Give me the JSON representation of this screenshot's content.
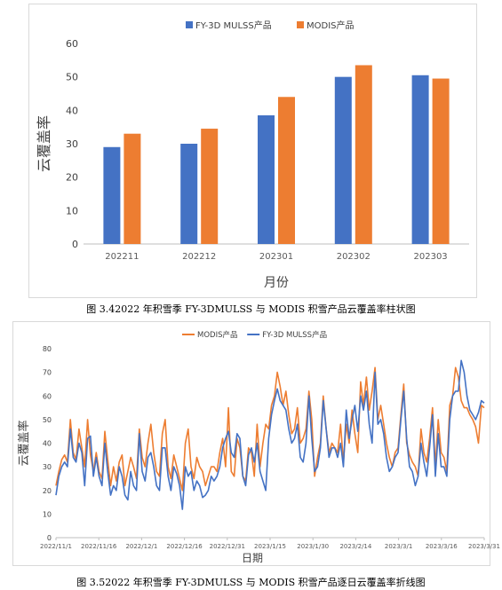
{
  "chart_data": [
    {
      "type": "bar",
      "categories": [
        "202211",
        "202212",
        "202301",
        "202302",
        "202303"
      ],
      "series": [
        {
          "name": "FY-3D MULSS产品",
          "values": [
            29,
            30,
            38.5,
            50,
            50.5
          ],
          "color": "#4472C4"
        },
        {
          "name": "MODIS产品",
          "values": [
            33,
            34.5,
            44,
            53.5,
            49.5
          ],
          "color": "#ED7D31"
        }
      ],
      "xlabel": "月份",
      "ylabel": "云覆盖率",
      "ylim": [
        0,
        60
      ],
      "yticks": [
        0,
        10,
        20,
        30,
        40,
        50,
        60
      ],
      "grid": false,
      "legend": "top-center"
    },
    {
      "type": "line",
      "xticks": [
        "2022/11/1",
        "2022/11/16",
        "2022/12/1",
        "2022/12/16",
        "2022/12/31",
        "2023/1/15",
        "2023/1/30",
        "2023/2/14",
        "2023/3/1",
        "2023/3/16",
        "2023/3/31"
      ],
      "x_start": "2022/11/1",
      "x_end": "2023/3/31",
      "series": [
        {
          "name": "MODIS产品",
          "color": "#ED7D31",
          "values": [
            22,
            28,
            33,
            35,
            32,
            50,
            36,
            33,
            46,
            38,
            30,
            50,
            35,
            28,
            36,
            28,
            25,
            45,
            33,
            22,
            30,
            24,
            32,
            35,
            22,
            28,
            34,
            30,
            25,
            46,
            34,
            30,
            40,
            48,
            36,
            28,
            26,
            44,
            50,
            30,
            25,
            35,
            30,
            25,
            20,
            40,
            46,
            30,
            25,
            34,
            30,
            28,
            22,
            26,
            30,
            30,
            28,
            36,
            42,
            30,
            55,
            28,
            26,
            42,
            38,
            26,
            24,
            38,
            36,
            26,
            48,
            30,
            40,
            48,
            46,
            56,
            60,
            70,
            64,
            56,
            62,
            52,
            44,
            46,
            55,
            40,
            42,
            46,
            62,
            50,
            26,
            34,
            40,
            60,
            46,
            36,
            40,
            38,
            36,
            48,
            32,
            48,
            40,
            54,
            44,
            36,
            66,
            56,
            68,
            54,
            62,
            72,
            50,
            56,
            48,
            40,
            34,
            30,
            36,
            38,
            52,
            65,
            40,
            35,
            32,
            30,
            26,
            46,
            36,
            32,
            42,
            55,
            30,
            50,
            36,
            34,
            28,
            56,
            60,
            72,
            68,
            58,
            55,
            55,
            52,
            50,
            47,
            40,
            56,
            55
          ]
        },
        {
          "name": "FY-3D MULSS产品",
          "color": "#4472C4",
          "values": [
            18,
            26,
            30,
            32,
            30,
            46,
            34,
            32,
            40,
            36,
            22,
            42,
            43,
            26,
            34,
            26,
            22,
            40,
            28,
            18,
            22,
            20,
            30,
            26,
            18,
            16,
            28,
            22,
            20,
            44,
            28,
            24,
            34,
            36,
            30,
            22,
            20,
            38,
            38,
            26,
            20,
            30,
            27,
            22,
            12,
            30,
            26,
            28,
            20,
            24,
            22,
            17,
            18,
            20,
            26,
            24,
            26,
            30,
            38,
            42,
            45,
            36,
            34,
            44,
            42,
            26,
            22,
            35,
            38,
            32,
            40,
            28,
            24,
            20,
            42,
            52,
            58,
            63,
            58,
            56,
            54,
            46,
            40,
            42,
            48,
            34,
            32,
            40,
            60,
            42,
            28,
            30,
            38,
            58,
            46,
            34,
            38,
            38,
            34,
            40,
            30,
            54,
            42,
            50,
            56,
            45,
            60,
            54,
            62,
            48,
            40,
            70,
            48,
            50,
            44,
            34,
            28,
            30,
            34,
            36,
            50,
            62,
            42,
            30,
            28,
            22,
            26,
            40,
            32,
            26,
            38,
            52,
            26,
            44,
            30,
            30,
            26,
            50,
            60,
            62,
            62,
            75,
            70,
            60,
            54,
            52,
            50,
            53,
            58,
            57
          ]
        }
      ],
      "xlabel": "日期",
      "ylabel": "云覆盖率",
      "ylim": [
        0,
        80
      ],
      "yticks": [
        0,
        10,
        20,
        30,
        40,
        50,
        60,
        70,
        80
      ],
      "grid": false,
      "legend": "top-center"
    }
  ],
  "captions": {
    "fig1": "图 3.42022 年积雪季 FY-3DMULSS 与 MODIS 积雪产品云覆盖率柱状图",
    "fig2": "图 3.52022 年积雪季 FY-3DMULSS 与 MODIS 积雪产品逐日云覆盖率折线图"
  }
}
